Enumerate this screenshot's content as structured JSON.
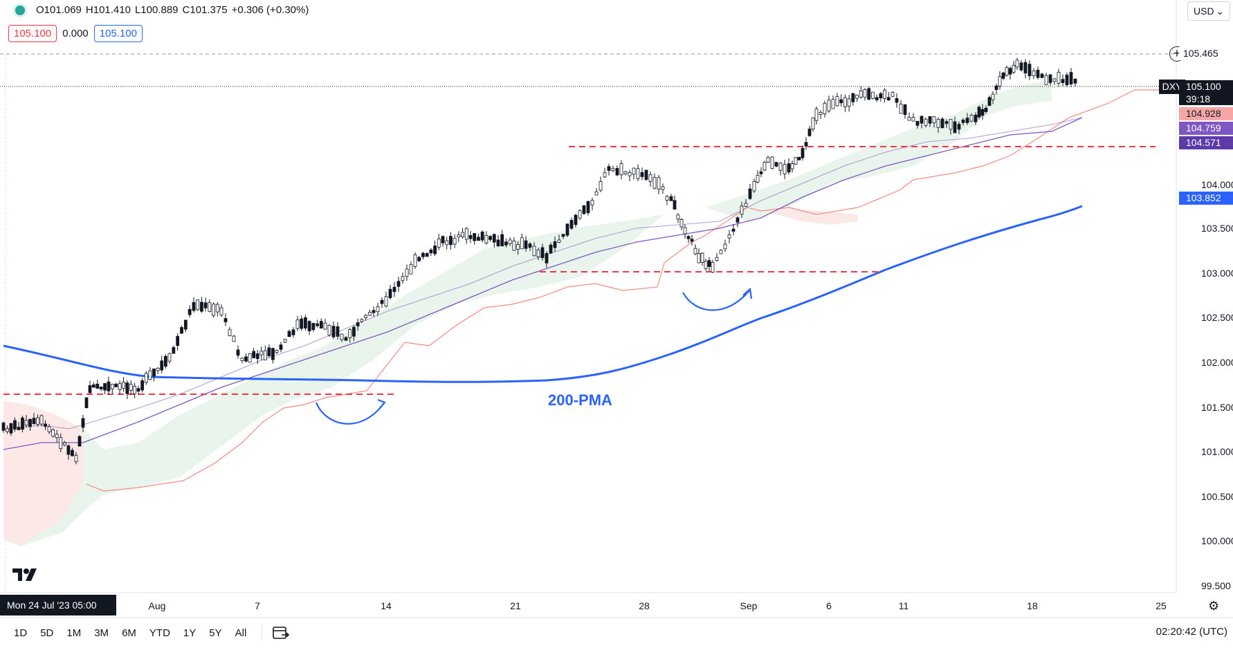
{
  "legend": {
    "open": "O101.069",
    "high": "H101.410",
    "low": "L100.889",
    "close": "C101.375",
    "change": "+0.306 (+0.30%)"
  },
  "values_row": {
    "left": "105.100",
    "mid": "0.000",
    "right": "105.100"
  },
  "currency": {
    "label": "USD",
    "chevron": "⌄"
  },
  "symbol_tag": "DXY",
  "price_tags": {
    "high_line": "105.465",
    "last": "105.100",
    "countdown": "39:18",
    "cloud_a": "104.928",
    "ma_fast": "104.759",
    "ma_slow": "104.571",
    "pma200": "103.852"
  },
  "price_axis": [
    "104.000",
    "103.500",
    "103.000",
    "102.500",
    "102.000",
    "101.500",
    "101.000",
    "100.500",
    "100.000",
    "99.500"
  ],
  "time_axis": [
    "Aug",
    "7",
    "14",
    "21",
    "28",
    "Sep",
    "6",
    "11",
    "18",
    "25"
  ],
  "cursor_date": "Mon 24 Jul '23  05:00",
  "annotation": "200-PMA",
  "ranges": [
    "1D",
    "5D",
    "1M",
    "3M",
    "6M",
    "YTD",
    "1Y",
    "5Y",
    "All"
  ],
  "clock": "02:20:42 (UTC)",
  "colors": {
    "up": "#ffffff",
    "down": "#131722",
    "pma200": "#2962ff",
    "ma": "#7e57c2",
    "cloud_green": "#e6f4ea",
    "cloud_red": "#fde4e4",
    "lagline": "#f28b82",
    "annotation_line": "#f23645"
  },
  "icons": {
    "status": "green-dot-icon",
    "add": "plus-circle-icon",
    "logo": "tradingview-logo-icon",
    "calendar": "calendar-range-icon",
    "settings": "gear-icon"
  }
}
